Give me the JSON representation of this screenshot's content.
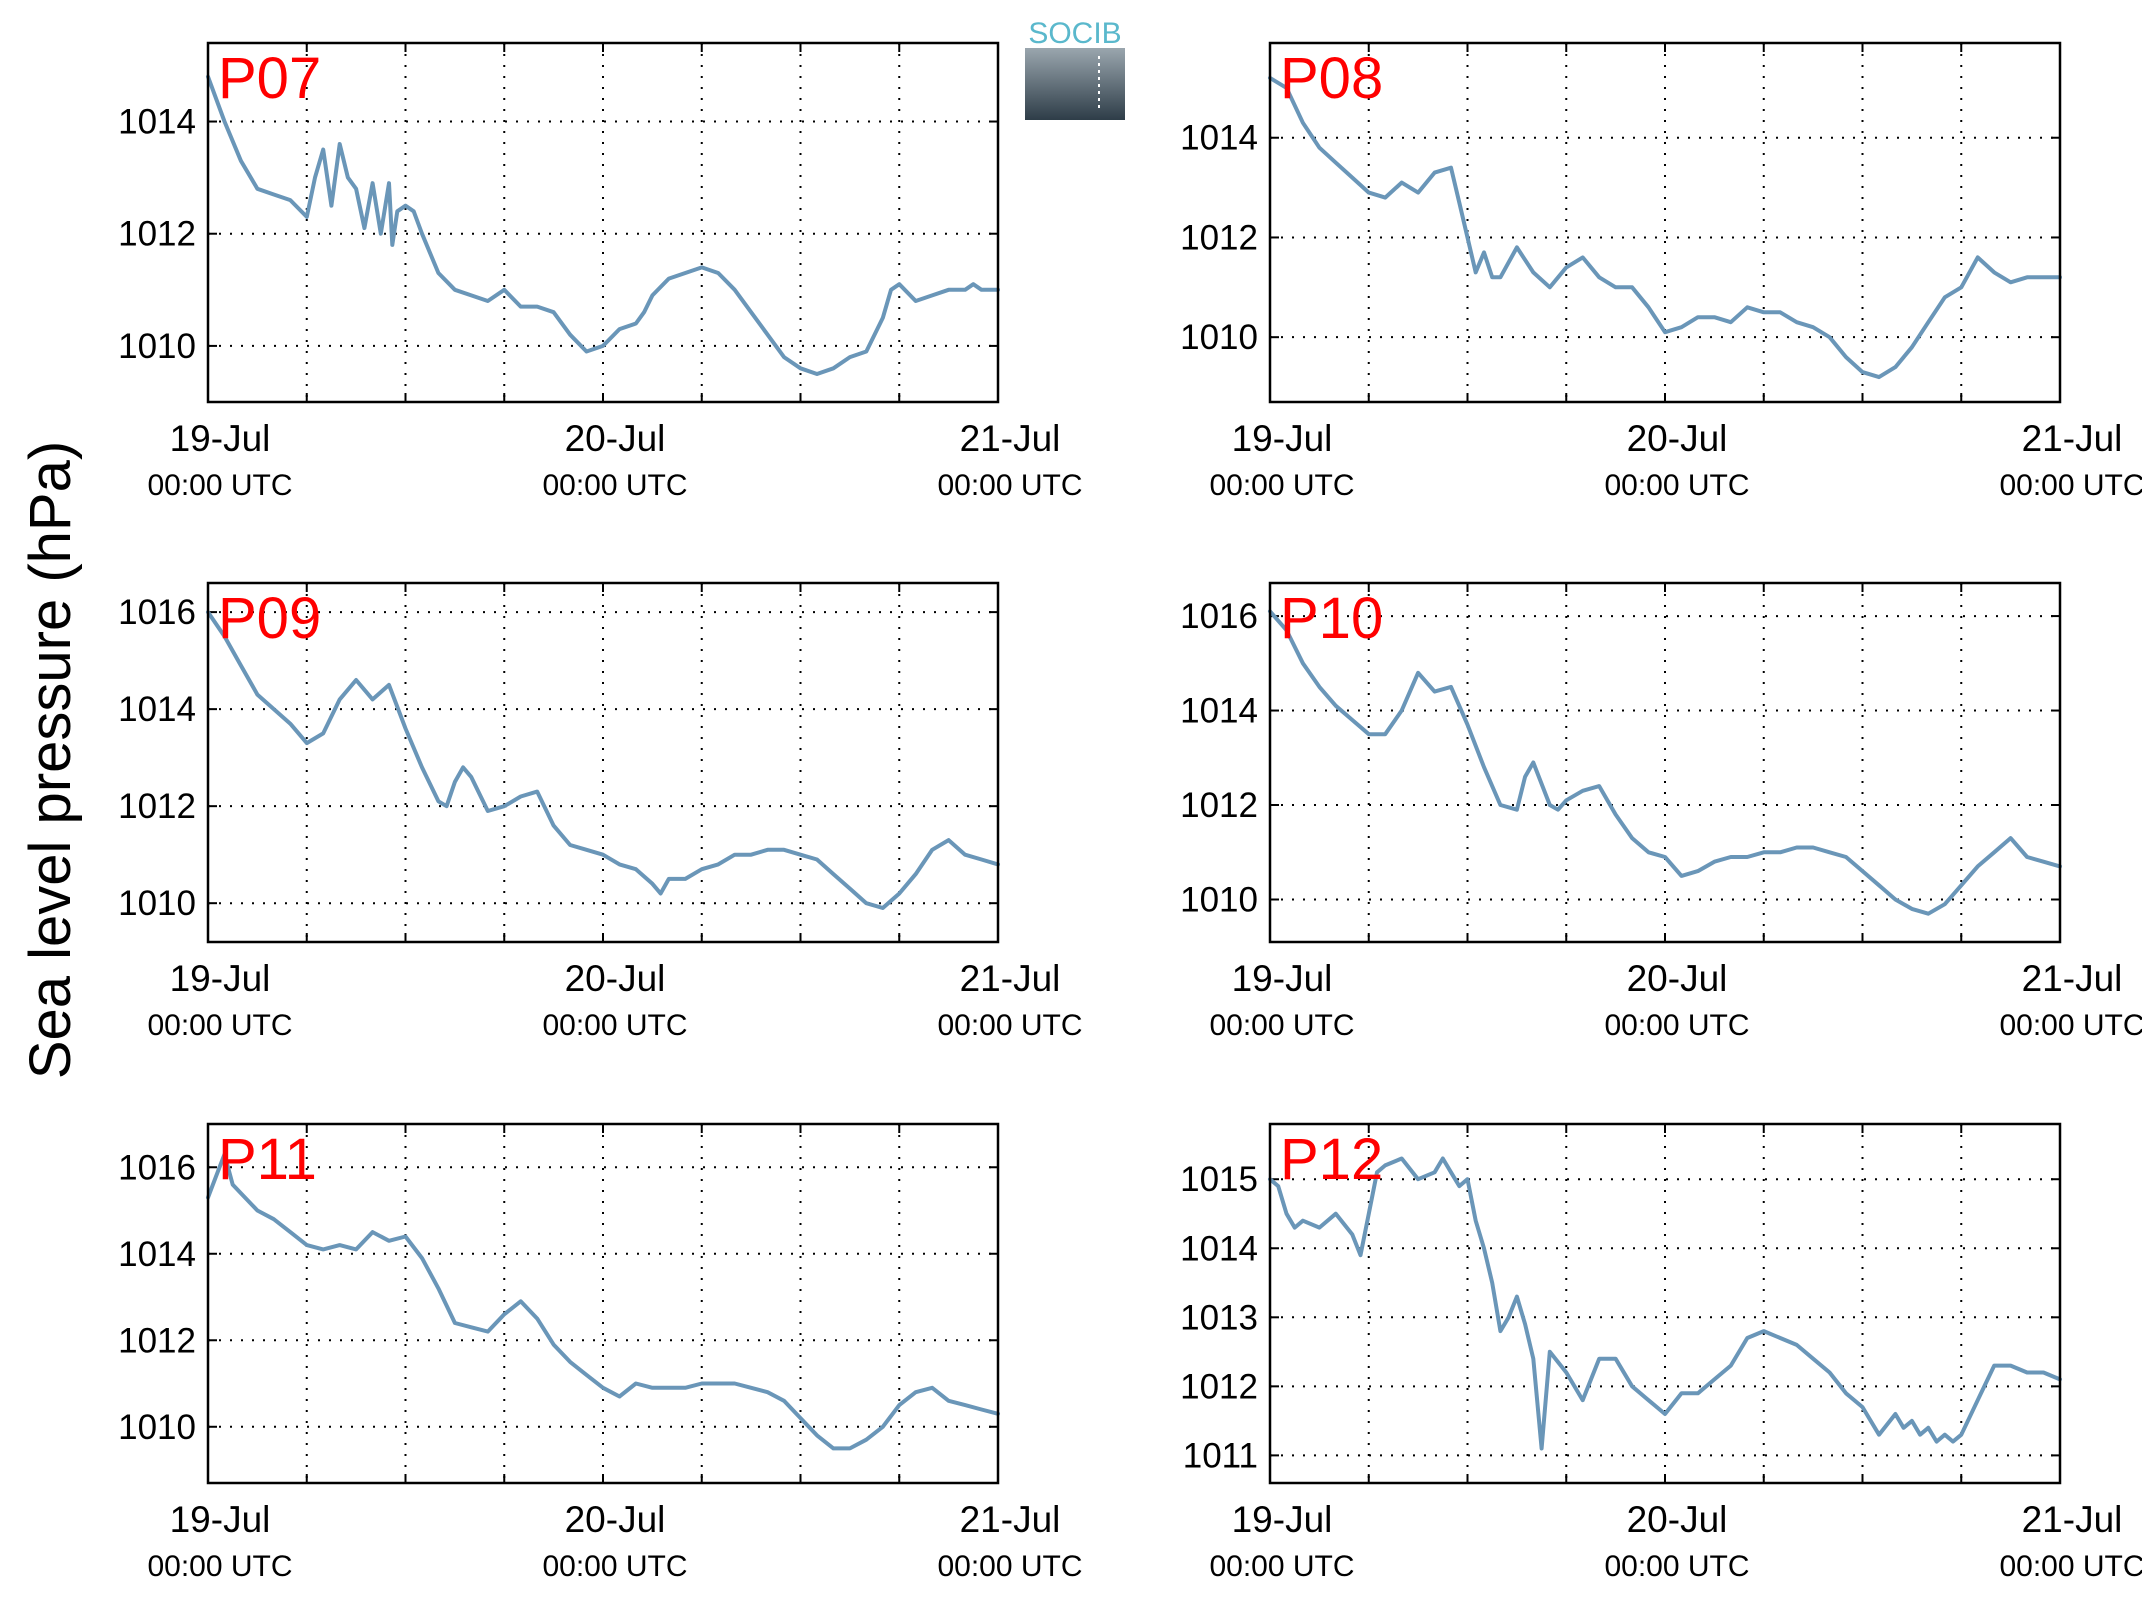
{
  "figure": {
    "ylabel": "Sea level pressure (hPa)",
    "logo_text": "SOCIB",
    "line_color": "#6a96b8",
    "label_color": "#ff0000",
    "logo_color": "#5ab8cc"
  },
  "chart_data": [
    {
      "type": "line",
      "title": "P07",
      "xlabel": "",
      "ylabel": "Sea level pressure (hPa)",
      "x_unit": "hours since 19-Jul 00:00 UTC",
      "xlim": [
        0,
        48
      ],
      "ylim": [
        1009.0,
        1015.4
      ],
      "xticks": [
        0,
        6,
        12,
        18,
        24,
        30,
        36,
        42,
        48
      ],
      "xtick_labels": [
        {
          "date": "19-Jul",
          "time": "00:00 UTC"
        },
        {
          "date": "20-Jul",
          "time": "00:00 UTC"
        },
        {
          "date": "21-Jul",
          "time": "00:00 UTC"
        }
      ],
      "yticks": [
        1010,
        1012,
        1014
      ],
      "grid": true,
      "series": [
        {
          "x": [
            0,
            1,
            2,
            3,
            4,
            5,
            6,
            6.5,
            7,
            7.5,
            8,
            8.5,
            9,
            9.5,
            10,
            10.5,
            11,
            11.2,
            11.5,
            12,
            12.5,
            13,
            14,
            15,
            16,
            17,
            18,
            19,
            20,
            21,
            22,
            23,
            24,
            25,
            26,
            26.5,
            27,
            28,
            29,
            30,
            31,
            32,
            33,
            34,
            35,
            36,
            37,
            38,
            39,
            40,
            41,
            41.5,
            42,
            43,
            44,
            45,
            46,
            46.5,
            47,
            48
          ],
          "y": [
            1014.8,
            1014.0,
            1013.3,
            1012.8,
            1012.7,
            1012.6,
            1012.3,
            1013.0,
            1013.5,
            1012.5,
            1013.6,
            1013.0,
            1012.8,
            1012.1,
            1012.9,
            1012.0,
            1012.9,
            1011.8,
            1012.4,
            1012.5,
            1012.4,
            1012.0,
            1011.3,
            1011.0,
            1010.9,
            1010.8,
            1011.0,
            1010.7,
            1010.7,
            1010.6,
            1010.2,
            1009.9,
            1010.0,
            1010.3,
            1010.4,
            1010.6,
            1010.9,
            1011.2,
            1011.3,
            1011.4,
            1011.3,
            1011.0,
            1010.6,
            1010.2,
            1009.8,
            1009.6,
            1009.5,
            1009.6,
            1009.8,
            1009.9,
            1010.5,
            1011.0,
            1011.1,
            1010.8,
            1010.9,
            1011.0,
            1011.0,
            1011.1,
            1011.0,
            1011.0
          ]
        }
      ]
    },
    {
      "type": "line",
      "title": "P08",
      "xlabel": "",
      "ylabel": "Sea level pressure (hPa)",
      "x_unit": "hours since 19-Jul 00:00 UTC",
      "xlim": [
        0,
        48
      ],
      "ylim": [
        1008.7,
        1015.9
      ],
      "xticks": [
        0,
        6,
        12,
        18,
        24,
        30,
        36,
        42,
        48
      ],
      "xtick_labels": [
        {
          "date": "19-Jul",
          "time": "00:00 UTC"
        },
        {
          "date": "20-Jul",
          "time": "00:00 UTC"
        },
        {
          "date": "21-Jul",
          "time": "00:00 UTC"
        }
      ],
      "yticks": [
        1010,
        1012,
        1014
      ],
      "grid": true,
      "series": [
        {
          "x": [
            0,
            1,
            2,
            3,
            4,
            5,
            6,
            7,
            8,
            9,
            10,
            11,
            11.5,
            12,
            12.5,
            13,
            13.5,
            14,
            15,
            16,
            17,
            18,
            19,
            20,
            21,
            22,
            23,
            24,
            25,
            26,
            27,
            28,
            29,
            30,
            31,
            32,
            33,
            34,
            35,
            36,
            37,
            38,
            39,
            40,
            41,
            42,
            43,
            44,
            45,
            46,
            47,
            48
          ],
          "y": [
            1015.2,
            1015.0,
            1014.3,
            1013.8,
            1013.5,
            1013.2,
            1012.9,
            1012.8,
            1013.1,
            1012.9,
            1013.3,
            1013.4,
            1012.7,
            1012.0,
            1011.3,
            1011.7,
            1011.2,
            1011.2,
            1011.8,
            1011.3,
            1011.0,
            1011.4,
            1011.6,
            1011.2,
            1011.0,
            1011.0,
            1010.6,
            1010.1,
            1010.2,
            1010.4,
            1010.4,
            1010.3,
            1010.6,
            1010.5,
            1010.5,
            1010.3,
            1010.2,
            1010.0,
            1009.6,
            1009.3,
            1009.2,
            1009.4,
            1009.8,
            1010.3,
            1010.8,
            1011.0,
            1011.6,
            1011.3,
            1011.1,
            1011.2,
            1011.2,
            1011.2
          ]
        }
      ]
    },
    {
      "type": "line",
      "title": "P09",
      "xlabel": "",
      "ylabel": "Sea level pressure (hPa)",
      "x_unit": "hours since 19-Jul 00:00 UTC",
      "xlim": [
        0,
        48
      ],
      "ylim": [
        1009.2,
        1016.6
      ],
      "xticks": [
        0,
        6,
        12,
        18,
        24,
        30,
        36,
        42,
        48
      ],
      "xtick_labels": [
        {
          "date": "19-Jul",
          "time": "00:00 UTC"
        },
        {
          "date": "20-Jul",
          "time": "00:00 UTC"
        },
        {
          "date": "21-Jul",
          "time": "00:00 UTC"
        }
      ],
      "yticks": [
        1010,
        1012,
        1014,
        1016
      ],
      "grid": true,
      "series": [
        {
          "x": [
            0,
            1,
            2,
            3,
            4,
            5,
            6,
            7,
            8,
            9,
            10,
            11,
            12,
            13,
            14,
            14.5,
            15,
            15.5,
            16,
            17,
            18,
            19,
            20,
            21,
            22,
            23,
            24,
            25,
            26,
            27,
            27.5,
            28,
            29,
            30,
            31,
            32,
            33,
            34,
            35,
            36,
            37,
            38,
            39,
            40,
            41,
            42,
            43,
            44,
            45,
            46,
            47,
            48
          ],
          "y": [
            1016.0,
            1015.5,
            1014.9,
            1014.3,
            1014.0,
            1013.7,
            1013.3,
            1013.5,
            1014.2,
            1014.6,
            1014.2,
            1014.5,
            1013.6,
            1012.8,
            1012.1,
            1012.0,
            1012.5,
            1012.8,
            1012.6,
            1011.9,
            1012.0,
            1012.2,
            1012.3,
            1011.6,
            1011.2,
            1011.1,
            1011.0,
            1010.8,
            1010.7,
            1010.4,
            1010.2,
            1010.5,
            1010.5,
            1010.7,
            1010.8,
            1011.0,
            1011.0,
            1011.1,
            1011.1,
            1011.0,
            1010.9,
            1010.6,
            1010.3,
            1010.0,
            1009.9,
            1010.2,
            1010.6,
            1011.1,
            1011.3,
            1011.0,
            1010.9,
            1010.8
          ]
        }
      ]
    },
    {
      "type": "line",
      "title": "P10",
      "xlabel": "",
      "ylabel": "Sea level pressure (hPa)",
      "x_unit": "hours since 19-Jul 00:00 UTC",
      "xlim": [
        0,
        48
      ],
      "ylim": [
        1009.1,
        1016.7
      ],
      "xticks": [
        0,
        6,
        12,
        18,
        24,
        30,
        36,
        42,
        48
      ],
      "xtick_labels": [
        {
          "date": "19-Jul",
          "time": "00:00 UTC"
        },
        {
          "date": "20-Jul",
          "time": "00:00 UTC"
        },
        {
          "date": "21-Jul",
          "time": "00:00 UTC"
        }
      ],
      "yticks": [
        1010,
        1012,
        1014,
        1016
      ],
      "grid": true,
      "series": [
        {
          "x": [
            0,
            1,
            2,
            3,
            4,
            5,
            6,
            7,
            8,
            9,
            10,
            11,
            12,
            13,
            14,
            15,
            15.5,
            16,
            17,
            17.5,
            18,
            19,
            20,
            21,
            22,
            23,
            24,
            25,
            26,
            27,
            28,
            29,
            30,
            31,
            32,
            33,
            34,
            35,
            36,
            37,
            38,
            39,
            40,
            41,
            42,
            43,
            44,
            45,
            46,
            47,
            48
          ],
          "y": [
            1016.1,
            1015.7,
            1015.0,
            1014.5,
            1014.1,
            1013.8,
            1013.5,
            1013.5,
            1014.0,
            1014.8,
            1014.4,
            1014.5,
            1013.7,
            1012.8,
            1012.0,
            1011.9,
            1012.6,
            1012.9,
            1012.0,
            1011.9,
            1012.1,
            1012.3,
            1012.4,
            1011.8,
            1011.3,
            1011.0,
            1010.9,
            1010.5,
            1010.6,
            1010.8,
            1010.9,
            1010.9,
            1011.0,
            1011.0,
            1011.1,
            1011.1,
            1011.0,
            1010.9,
            1010.6,
            1010.3,
            1010.0,
            1009.8,
            1009.7,
            1009.9,
            1010.3,
            1010.7,
            1011.0,
            1011.3,
            1010.9,
            1010.8,
            1010.7
          ]
        }
      ]
    },
    {
      "type": "line",
      "title": "P11",
      "xlabel": "",
      "ylabel": "Sea level pressure (hPa)",
      "x_unit": "hours since 19-Jul 00:00 UTC",
      "xlim": [
        0,
        48
      ],
      "ylim": [
        1008.7,
        1017.0
      ],
      "xticks": [
        0,
        6,
        12,
        18,
        24,
        30,
        36,
        42,
        48
      ],
      "xtick_labels": [
        {
          "date": "19-Jul",
          "time": "00:00 UTC"
        },
        {
          "date": "20-Jul",
          "time": "00:00 UTC"
        },
        {
          "date": "21-Jul",
          "time": "00:00 UTC"
        }
      ],
      "yticks": [
        1010,
        1012,
        1014,
        1016
      ],
      "grid": true,
      "series": [
        {
          "x": [
            0,
            0.5,
            1,
            1.5,
            2,
            3,
            4,
            5,
            6,
            7,
            8,
            9,
            10,
            11,
            12,
            13,
            14,
            15,
            16,
            17,
            18,
            19,
            20,
            21,
            22,
            23,
            24,
            25,
            26,
            27,
            28,
            29,
            30,
            31,
            32,
            33,
            34,
            35,
            36,
            37,
            38,
            39,
            40,
            41,
            42,
            43,
            44,
            45,
            46,
            47,
            48
          ],
          "y": [
            1015.3,
            1015.8,
            1016.3,
            1015.6,
            1015.4,
            1015.0,
            1014.8,
            1014.5,
            1014.2,
            1014.1,
            1014.2,
            1014.1,
            1014.5,
            1014.3,
            1014.4,
            1013.9,
            1013.2,
            1012.4,
            1012.3,
            1012.2,
            1012.6,
            1012.9,
            1012.5,
            1011.9,
            1011.5,
            1011.2,
            1010.9,
            1010.7,
            1011.0,
            1010.9,
            1010.9,
            1010.9,
            1011.0,
            1011.0,
            1011.0,
            1010.9,
            1010.8,
            1010.6,
            1010.2,
            1009.8,
            1009.5,
            1009.5,
            1009.7,
            1010.0,
            1010.5,
            1010.8,
            1010.9,
            1010.6,
            1010.5,
            1010.4,
            1010.3
          ]
        }
      ]
    },
    {
      "type": "line",
      "title": "P12",
      "xlabel": "",
      "ylabel": "Sea level pressure (hPa)",
      "x_unit": "hours since 19-Jul 00:00 UTC",
      "xlim": [
        0,
        48
      ],
      "ylim": [
        1010.6,
        1015.8
      ],
      "xticks": [
        0,
        6,
        12,
        18,
        24,
        30,
        36,
        42,
        48
      ],
      "xtick_labels": [
        {
          "date": "19-Jul",
          "time": "00:00 UTC"
        },
        {
          "date": "20-Jul",
          "time": "00:00 UTC"
        },
        {
          "date": "21-Jul",
          "time": "00:00 UTC"
        }
      ],
      "yticks": [
        1011,
        1012,
        1013,
        1014,
        1015
      ],
      "grid": true,
      "series": [
        {
          "x": [
            0,
            0.5,
            1,
            1.5,
            2,
            3,
            4,
            5,
            5.5,
            6,
            6.5,
            7,
            8,
            9,
            10,
            10.5,
            11,
            11.5,
            12,
            12.5,
            13,
            13.5,
            14,
            14.5,
            15,
            15.5,
            16,
            16.5,
            17,
            18,
            19,
            20,
            21,
            22,
            23,
            24,
            25,
            26,
            27,
            28,
            29,
            30,
            31,
            32,
            33,
            34,
            35,
            36,
            37,
            38,
            38.5,
            39,
            39.5,
            40,
            40.5,
            41,
            41.5,
            42,
            43,
            44,
            45,
            46,
            47,
            48
          ],
          "y": [
            1015.0,
            1014.9,
            1014.5,
            1014.3,
            1014.4,
            1014.3,
            1014.5,
            1014.2,
            1013.9,
            1014.5,
            1015.1,
            1015.2,
            1015.3,
            1015.0,
            1015.1,
            1015.3,
            1015.1,
            1014.9,
            1015.0,
            1014.4,
            1014.0,
            1013.5,
            1012.8,
            1013.0,
            1013.3,
            1012.9,
            1012.4,
            1011.1,
            1012.5,
            1012.2,
            1011.8,
            1012.4,
            1012.4,
            1012.0,
            1011.8,
            1011.6,
            1011.9,
            1011.9,
            1012.1,
            1012.3,
            1012.7,
            1012.8,
            1012.7,
            1012.6,
            1012.4,
            1012.2,
            1011.9,
            1011.7,
            1011.3,
            1011.6,
            1011.4,
            1011.5,
            1011.3,
            1011.4,
            1011.2,
            1011.3,
            1011.2,
            1011.3,
            1011.8,
            1012.3,
            1012.3,
            1012.2,
            1012.2,
            1012.1
          ]
        }
      ]
    }
  ]
}
